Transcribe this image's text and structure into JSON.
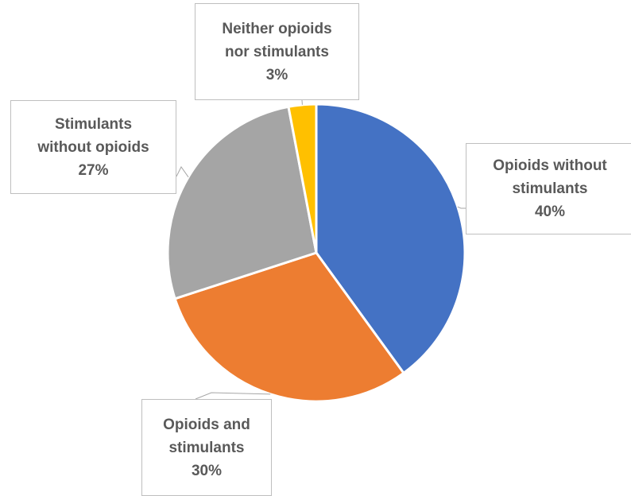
{
  "chart_data": {
    "type": "pie",
    "title": "",
    "start_angle_deg": 0,
    "direction": "clockwise",
    "slices": [
      {
        "label": "Opioids without stimulants",
        "label_lines": [
          "Opioids without",
          "stimulants"
        ],
        "value": 40,
        "value_label": "40%",
        "color": "#4472C4"
      },
      {
        "label": "Opioids and stimulants",
        "label_lines": [
          "Opioids and",
          "stimulants"
        ],
        "value": 30,
        "value_label": "30%",
        "color": "#ED7D31"
      },
      {
        "label": "Stimulants without opioids",
        "label_lines": [
          "Stimulants",
          "without opioids"
        ],
        "value": 27,
        "value_label": "27%",
        "color": "#A5A5A5"
      },
      {
        "label": "Neither opioids nor stimulants",
        "label_lines": [
          "Neither opioids",
          "nor stimulants"
        ],
        "value": 3,
        "value_label": "3%",
        "color": "#FFC000"
      }
    ],
    "legend": "none",
    "data_labels": "callouts with leader lines"
  }
}
